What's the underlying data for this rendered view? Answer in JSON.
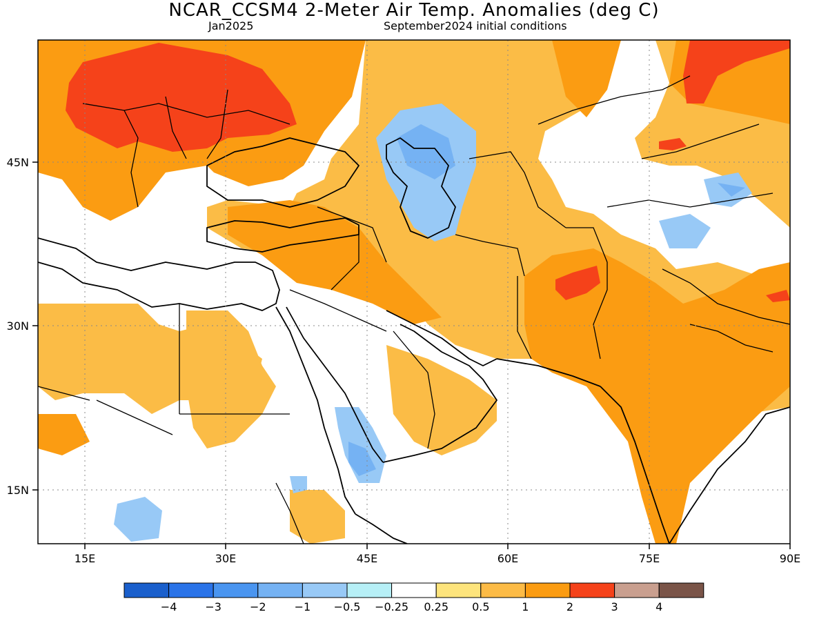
{
  "title": "NCAR_CCSM4 2-Meter Air Temp. Anomalies (deg C)",
  "forecast_month": "Jan2025",
  "init_conditions": "September2024 initial conditions",
  "map": {
    "lon_range": [
      10,
      90
    ],
    "lat_range": [
      10,
      55
    ],
    "lon_ticks": [
      "15E",
      "30E",
      "45E",
      "60E",
      "75E",
      "90E"
    ],
    "lat_ticks": [
      "15N",
      "30N",
      "45N"
    ],
    "gridlines": "dotted"
  },
  "colorbar": {
    "colors": [
      "#1a5fcc",
      "#2a73e8",
      "#4a95f0",
      "#75b2f3",
      "#98c9f6",
      "#b6eff6",
      "#ffffff",
      "#fde47c",
      "#fcbb46",
      "#fb9c12",
      "#f5421a",
      "#c99f8f",
      "#7a5448"
    ],
    "labels": [
      "−4",
      "−3",
      "−2",
      "−1",
      "−0.5",
      "−0.25",
      "0.25",
      "0.5",
      "1",
      "2",
      "3",
      "4"
    ]
  }
}
